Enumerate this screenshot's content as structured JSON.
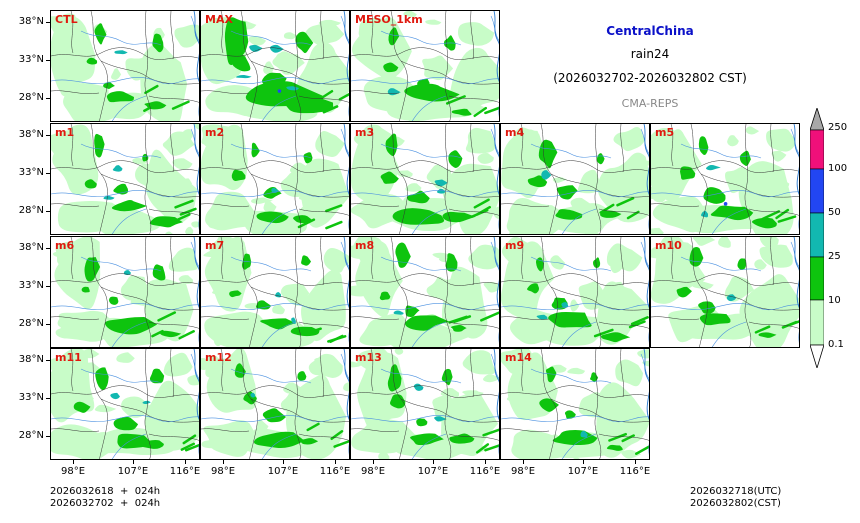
{
  "title": {
    "region": "CentralChina",
    "variable": "rain24",
    "period": "(2026032702-2026032802 CST)",
    "model": "CMA-REPS"
  },
  "panels": [
    {
      "label": "CTL",
      "pattern": 0
    },
    {
      "label": "MAX",
      "pattern": 1
    },
    {
      "label": "MESO_1km",
      "pattern": 2
    },
    {
      "label": "m1",
      "pattern": 3
    },
    {
      "label": "m2",
      "pattern": 4
    },
    {
      "label": "m3",
      "pattern": 5
    },
    {
      "label": "m4",
      "pattern": 6
    },
    {
      "label": "m5",
      "pattern": 7
    },
    {
      "label": "m6",
      "pattern": 8
    },
    {
      "label": "m7",
      "pattern": 9
    },
    {
      "label": "m8",
      "pattern": 10
    },
    {
      "label": "m9",
      "pattern": 11
    },
    {
      "label": "m10",
      "pattern": 12
    },
    {
      "label": "m11",
      "pattern": 13
    },
    {
      "label": "m12",
      "pattern": 14
    },
    {
      "label": "m13",
      "pattern": 15
    },
    {
      "label": "m14",
      "pattern": 16
    }
  ],
  "axes": {
    "lat_labels": [
      "38°N",
      "33°N",
      "28°N"
    ],
    "lon_labels": [
      "98°E",
      "107°E",
      "116°E"
    ]
  },
  "colorbar": {
    "levels": [
      "0.1",
      "10",
      "25",
      "50",
      "100",
      "250"
    ],
    "colors": [
      "#c8fcc8",
      "#0ec40e",
      "#12b8b0",
      "#2246f2",
      "#f0107a",
      "#a8a8a8"
    ]
  },
  "footer": {
    "init_utc": "2026032618  +  024h",
    "init_cst": "2026032702  +  024h",
    "valid_utc": "2026032718(UTC)",
    "valid_cst": "2026032802(CST)"
  }
}
